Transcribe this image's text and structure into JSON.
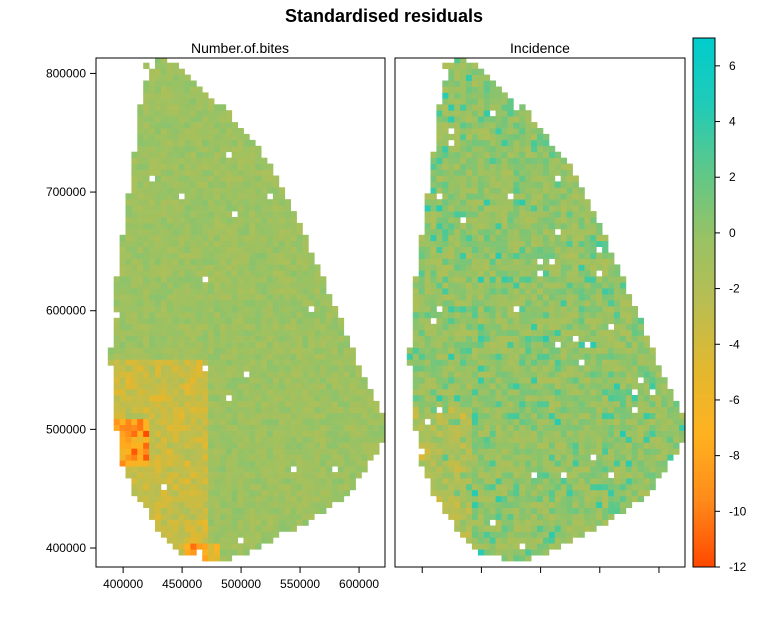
{
  "chart_data": {
    "type": "heatmap",
    "title": "Standardised residuals",
    "panels": [
      {
        "name": "Number.of.bites"
      },
      {
        "name": "Incidence"
      }
    ],
    "x_ticks": [
      {
        "value": 400000,
        "label": "400000"
      },
      {
        "value": 450000,
        "label": "450000"
      },
      {
        "value": 500000,
        "label": "500000"
      },
      {
        "value": 550000,
        "label": "550000"
      },
      {
        "value": 600000,
        "label": "600000"
      }
    ],
    "y_ticks": [
      {
        "value": 400000,
        "label": "400000"
      },
      {
        "value": 500000,
        "label": "500000"
      },
      {
        "value": 600000,
        "label": "600000"
      },
      {
        "value": 700000,
        "label": "700000"
      },
      {
        "value": 800000,
        "label": "800000"
      }
    ],
    "xlim": [
      377000,
      622000
    ],
    "ylim": [
      384000,
      813000
    ],
    "colorbar": {
      "min": -12,
      "max": 7,
      "ticks": [
        {
          "value": 6,
          "label": "6"
        },
        {
          "value": 4,
          "label": "4"
        },
        {
          "value": 2,
          "label": "2"
        },
        {
          "value": 0,
          "label": "0"
        },
        {
          "value": -2,
          "label": "-2"
        },
        {
          "value": -4,
          "label": "-4"
        },
        {
          "value": -6,
          "label": "-6"
        },
        {
          "value": -8,
          "label": "-8"
        },
        {
          "value": -10,
          "label": "-10"
        },
        {
          "value": -12,
          "label": "-12"
        }
      ],
      "colors": [
        "#ff4800",
        "#ff8a1a",
        "#ffb21f",
        "#e2b82f",
        "#b9be52",
        "#97c265",
        "#5dc88a",
        "#20cbb8",
        "#00cdcd"
      ]
    },
    "outline": [
      [
        419000,
        811000
      ],
      [
        434000,
        812000
      ],
      [
        446000,
        806000
      ],
      [
        458000,
        795000
      ],
      [
        468000,
        783000
      ],
      [
        487000,
        771000
      ],
      [
        503000,
        750000
      ],
      [
        513000,
        739000
      ],
      [
        524000,
        724000
      ],
      [
        536000,
        702000
      ],
      [
        550000,
        675000
      ],
      [
        562000,
        645000
      ],
      [
        573000,
        618000
      ],
      [
        586000,
        590000
      ],
      [
        597000,
        560000
      ],
      [
        607000,
        538000
      ],
      [
        621000,
        512000
      ],
      [
        620000,
        488000
      ],
      [
        608000,
        470000
      ],
      [
        593000,
        448000
      ],
      [
        570000,
        430000
      ],
      [
        540000,
        412000
      ],
      [
        505000,
        396000
      ],
      [
        478000,
        387000
      ],
      [
        450000,
        395000
      ],
      [
        428000,
        418000
      ],
      [
        408000,
        448000
      ],
      [
        396000,
        480000
      ],
      [
        393000,
        520000
      ],
      [
        389000,
        560000
      ],
      [
        392000,
        610000
      ],
      [
        398000,
        650000
      ],
      [
        403000,
        690000
      ],
      [
        409000,
        730000
      ],
      [
        413000,
        770000
      ],
      [
        420000,
        795000
      ]
    ]
  }
}
